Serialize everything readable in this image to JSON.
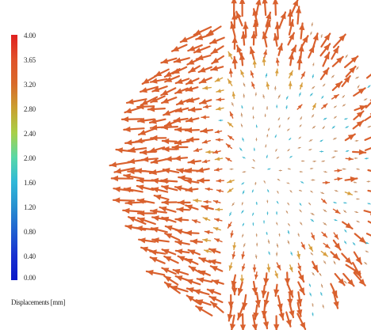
{
  "legend": {
    "title": "Displacements [mm]",
    "ticks": [
      "4.00",
      "3.65",
      "3.20",
      "2.80",
      "2.40",
      "2.00",
      "1.60",
      "1.20",
      "0.80",
      "0.40",
      "0.00"
    ],
    "colors": [
      "#e02020",
      "#e0522a",
      "#d86a2a",
      "#c9a030",
      "#a8d048",
      "#58d8a8",
      "#30b8d8",
      "#2890d0",
      "#2060d0",
      "#1830d0",
      "#0a18c8"
    ]
  },
  "colors": {
    "high": "#d9612e",
    "mid": "#d8a040",
    "low": "#40b8d0",
    "background": "#ffffff"
  }
}
